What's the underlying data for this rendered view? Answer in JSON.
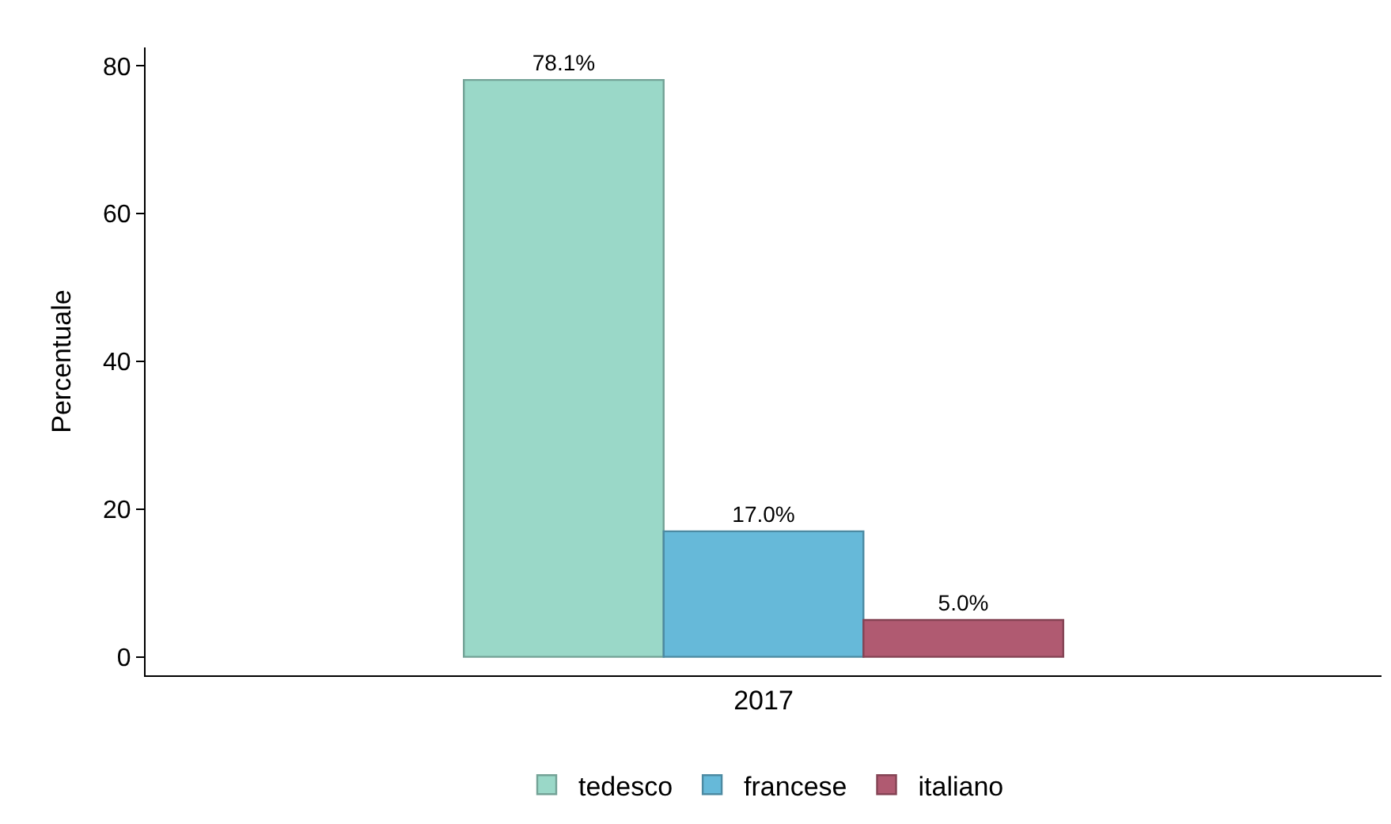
{
  "chart_data": {
    "type": "bar",
    "ylabel": "Percentuale",
    "categories": [
      "2017"
    ],
    "series": [
      {
        "name": "tedesco",
        "color": "#9ad8c8",
        "values": [
          78.1
        ],
        "value_labels": [
          "78.1%"
        ]
      },
      {
        "name": "francese",
        "color": "#66b9d9",
        "values": [
          17.0
        ],
        "value_labels": [
          "17.0%"
        ]
      },
      {
        "name": "italiano",
        "color": "#b05a71",
        "values": [
          5.0
        ],
        "value_labels": [
          "5.0%"
        ]
      }
    ],
    "ylim": [
      -2.5,
      82.5
    ],
    "yticks": [
      0,
      20,
      40,
      60,
      80
    ],
    "legend": "bottom"
  }
}
